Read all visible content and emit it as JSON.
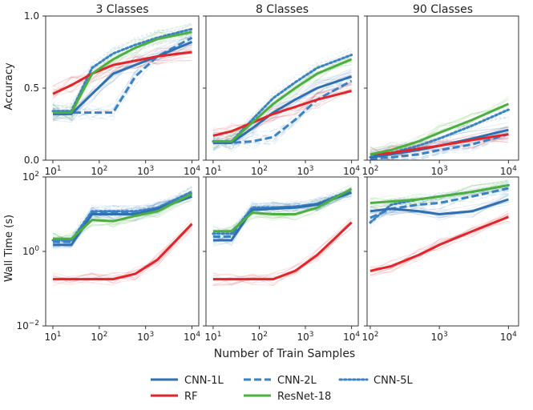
{
  "figure": {
    "xlabel": "Number of Train Samples",
    "ylabel_top": "Accuracy",
    "ylabel_bottom": "Wall Time (s)"
  },
  "legend": [
    {
      "label": "CNN-1L",
      "color": "#2f6fb2",
      "dash": "solid"
    },
    {
      "label": "CNN-2L",
      "color": "#3a82c4",
      "dash": "dashed"
    },
    {
      "label": "CNN-5L",
      "color": "#3a82c4",
      "dash": "dotted"
    },
    {
      "label": "RF",
      "color": "#e0262b",
      "dash": "solid"
    },
    {
      "label": "ResNet-18",
      "color": "#4caf3f",
      "dash": "solid"
    }
  ],
  "chart_data": [
    {
      "type": "line",
      "title": "3 Classes",
      "xscale": "log",
      "xlim": [
        7,
        14000
      ],
      "ylim": [
        0.0,
        1.0
      ],
      "yticks": [
        "0.0",
        "0.5",
        "1.0"
      ],
      "xticks": [
        "10^1",
        "10^2",
        "10^3",
        "10^4"
      ],
      "series": [
        {
          "name": "CNN-1L",
          "x": [
            10,
            25,
            70,
            200,
            600,
            1800,
            10000
          ],
          "y": [
            0.32,
            0.32,
            0.46,
            0.6,
            0.66,
            0.72,
            0.82
          ]
        },
        {
          "name": "CNN-2L",
          "x": [
            10,
            25,
            70,
            200,
            600,
            1800,
            10000
          ],
          "y": [
            0.33,
            0.33,
            0.33,
            0.33,
            0.58,
            0.72,
            0.85
          ]
        },
        {
          "name": "CNN-5L",
          "x": [
            10,
            25,
            70,
            200,
            600,
            1800,
            10000
          ],
          "y": [
            0.34,
            0.34,
            0.64,
            0.74,
            0.8,
            0.85,
            0.91
          ]
        },
        {
          "name": "RF",
          "x": [
            10,
            25,
            70,
            200,
            600,
            1800,
            10000
          ],
          "y": [
            0.46,
            0.52,
            0.6,
            0.66,
            0.69,
            0.72,
            0.75
          ]
        },
        {
          "name": "ResNet-18",
          "x": [
            10,
            25,
            70,
            200,
            600,
            1800,
            10000
          ],
          "y": [
            0.33,
            0.33,
            0.6,
            0.7,
            0.78,
            0.84,
            0.89
          ]
        }
      ]
    },
    {
      "type": "line",
      "title": "8 Classes",
      "xscale": "log",
      "xlim": [
        7,
        14000
      ],
      "ylim": [
        0.0,
        1.0
      ],
      "yticks": [],
      "xticks": [
        "10^1",
        "10^2",
        "10^3",
        "10^4"
      ],
      "series": [
        {
          "name": "CNN-1L",
          "x": [
            10,
            25,
            70,
            200,
            600,
            1800,
            10000
          ],
          "y": [
            0.12,
            0.12,
            0.22,
            0.33,
            0.42,
            0.5,
            0.58
          ]
        },
        {
          "name": "CNN-2L",
          "x": [
            10,
            25,
            70,
            200,
            600,
            1800,
            10000
          ],
          "y": [
            0.12,
            0.12,
            0.13,
            0.16,
            0.28,
            0.42,
            0.55
          ]
        },
        {
          "name": "CNN-5L",
          "x": [
            10,
            25,
            70,
            200,
            600,
            1800,
            10000
          ],
          "y": [
            0.13,
            0.13,
            0.28,
            0.43,
            0.54,
            0.64,
            0.73
          ]
        },
        {
          "name": "RF",
          "x": [
            10,
            25,
            70,
            200,
            600,
            1800,
            10000
          ],
          "y": [
            0.17,
            0.2,
            0.26,
            0.32,
            0.37,
            0.42,
            0.48
          ]
        },
        {
          "name": "ResNet-18",
          "x": [
            10,
            25,
            70,
            200,
            600,
            1800,
            10000
          ],
          "y": [
            0.13,
            0.13,
            0.26,
            0.39,
            0.5,
            0.6,
            0.7
          ]
        }
      ]
    },
    {
      "type": "line",
      "title": "90 Classes",
      "xscale": "log",
      "xlim": [
        90,
        14000
      ],
      "ylim": [
        0.0,
        1.0
      ],
      "yticks": [],
      "xticks": [
        "10^2",
        "10^3",
        "10^4"
      ],
      "series": [
        {
          "name": "CNN-1L",
          "x": [
            100,
            200,
            500,
            1000,
            3000,
            10000
          ],
          "y": [
            0.02,
            0.04,
            0.07,
            0.1,
            0.15,
            0.21
          ]
        },
        {
          "name": "CNN-2L",
          "x": [
            100,
            200,
            500,
            1000,
            3000,
            10000
          ],
          "y": [
            0.01,
            0.02,
            0.04,
            0.07,
            0.11,
            0.18
          ]
        },
        {
          "name": "CNN-5L",
          "x": [
            100,
            200,
            500,
            1000,
            3000,
            10000
          ],
          "y": [
            0.02,
            0.05,
            0.1,
            0.15,
            0.24,
            0.35
          ]
        },
        {
          "name": "RF",
          "x": [
            100,
            200,
            500,
            1000,
            3000,
            10000
          ],
          "y": [
            0.04,
            0.05,
            0.08,
            0.1,
            0.14,
            0.18
          ]
        },
        {
          "name": "ResNet-18",
          "x": [
            100,
            200,
            500,
            1000,
            3000,
            10000
          ],
          "y": [
            0.04,
            0.07,
            0.13,
            0.19,
            0.28,
            0.39
          ]
        }
      ]
    },
    {
      "type": "line",
      "title": "",
      "xscale": "log",
      "yscale": "log",
      "xlim": [
        7,
        14000
      ],
      "ylim": [
        0.01,
        100
      ],
      "yticks": [
        "10^-2",
        "10^0",
        "10^2"
      ],
      "xticks": [
        "10^1",
        "10^2",
        "10^3",
        "10^4"
      ],
      "series": [
        {
          "name": "CNN-1L",
          "x": [
            10,
            25,
            70,
            200,
            600,
            1800,
            10000
          ],
          "y": [
            1.5,
            1.5,
            10,
            10,
            10,
            14,
            30
          ]
        },
        {
          "name": "CNN-2L",
          "x": [
            10,
            25,
            70,
            200,
            600,
            1800,
            10000
          ],
          "y": [
            1.8,
            1.8,
            11,
            11,
            11,
            15,
            38
          ]
        },
        {
          "name": "CNN-5L",
          "x": [
            10,
            25,
            70,
            200,
            600,
            1800,
            10000
          ],
          "y": [
            2.0,
            2.0,
            12,
            12,
            12,
            15,
            40
          ]
        },
        {
          "name": "RF",
          "x": [
            10,
            25,
            70,
            200,
            600,
            1800,
            10000
          ],
          "y": [
            0.18,
            0.18,
            0.18,
            0.18,
            0.25,
            0.6,
            5.5
          ]
        },
        {
          "name": "ResNet-18",
          "x": [
            10,
            25,
            70,
            200,
            600,
            1800,
            10000
          ],
          "y": [
            2.2,
            2.2,
            7,
            6.5,
            9,
            12,
            35
          ]
        }
      ]
    },
    {
      "type": "line",
      "title": "",
      "xscale": "log",
      "yscale": "log",
      "xlim": [
        7,
        14000
      ],
      "ylim": [
        0.01,
        100
      ],
      "yticks": [],
      "xticks": [
        "10^1",
        "10^2",
        "10^3",
        "10^4"
      ],
      "series": [
        {
          "name": "CNN-1L",
          "x": [
            10,
            25,
            70,
            200,
            600,
            1800,
            10000
          ],
          "y": [
            2.0,
            2.0,
            13,
            14,
            15,
            18,
            38
          ]
        },
        {
          "name": "CNN-2L",
          "x": [
            10,
            25,
            70,
            200,
            600,
            1800,
            10000
          ],
          "y": [
            2.5,
            2.5,
            14,
            15,
            16,
            19,
            42
          ]
        },
        {
          "name": "CNN-5L",
          "x": [
            10,
            25,
            70,
            200,
            600,
            1800,
            10000
          ],
          "y": [
            3.0,
            3.0,
            15,
            15,
            16,
            19,
            45
          ]
        },
        {
          "name": "RF",
          "x": [
            10,
            25,
            70,
            200,
            600,
            1800,
            10000
          ],
          "y": [
            0.18,
            0.18,
            0.18,
            0.18,
            0.3,
            0.8,
            6.0
          ]
        },
        {
          "name": "ResNet-18",
          "x": [
            10,
            25,
            70,
            200,
            600,
            1800,
            10000
          ],
          "y": [
            3.5,
            3.5,
            11,
            10,
            10,
            15,
            48
          ]
        }
      ]
    },
    {
      "type": "line",
      "title": "",
      "xscale": "log",
      "yscale": "log",
      "xlim": [
        90,
        14000
      ],
      "ylim": [
        0.01,
        100
      ],
      "yticks": [],
      "xticks": [
        "10^2",
        "10^3",
        "10^4"
      ],
      "series": [
        {
          "name": "CNN-1L",
          "x": [
            100,
            200,
            500,
            1000,
            3000,
            10000
          ],
          "y": [
            12,
            14,
            12,
            10,
            12,
            25
          ]
        },
        {
          "name": "CNN-2L",
          "x": [
            100,
            200,
            500,
            1000,
            3000,
            10000
          ],
          "y": [
            8,
            14,
            18,
            20,
            30,
            50
          ]
        },
        {
          "name": "CNN-5L",
          "x": [
            100,
            200,
            500,
            1000,
            3000,
            10000
          ],
          "y": [
            6,
            18,
            25,
            30,
            40,
            60
          ]
        },
        {
          "name": "RF",
          "x": [
            100,
            200,
            500,
            1000,
            3000,
            10000
          ],
          "y": [
            0.3,
            0.4,
            0.8,
            1.5,
            3.5,
            8.5
          ]
        },
        {
          "name": "ResNet-18",
          "x": [
            100,
            200,
            500,
            1000,
            3000,
            10000
          ],
          "y": [
            20,
            22,
            25,
            30,
            40,
            60
          ]
        }
      ]
    }
  ]
}
